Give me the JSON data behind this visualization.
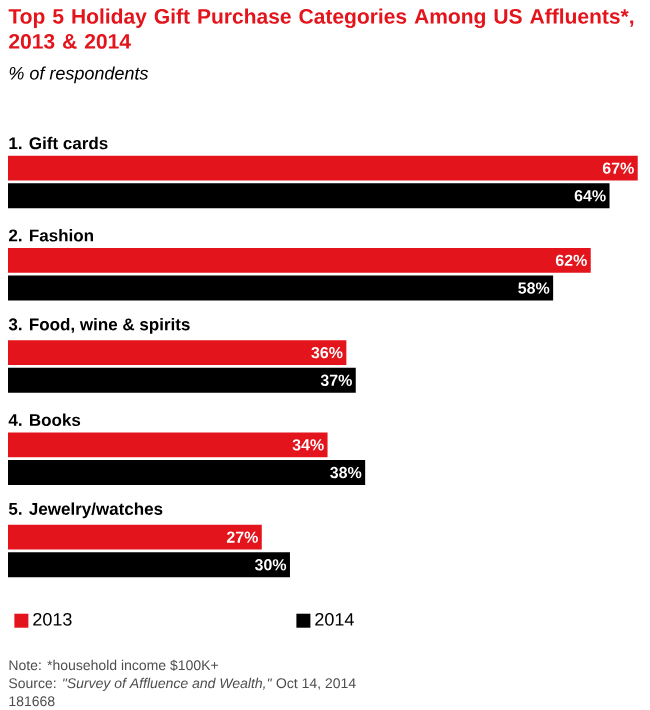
{
  "chart_data": {
    "type": "bar",
    "orientation": "horizontal",
    "title": "Top 5 Holiday Gift Purchase Categories Among US Affluents*, 2013 & 2014",
    "subtitle": "% of respondents",
    "categories": [
      "1. Gift cards",
      "2. Fashion",
      "3. Food, wine & spirits",
      "4. Books",
      "5. Jewelry/watches"
    ],
    "series": [
      {
        "name": "2013",
        "color": "#e3141b",
        "values": [
          67,
          62,
          36,
          34,
          27
        ],
        "value_labels": [
          "67%",
          "62%",
          "36%",
          "34%",
          "27%"
        ]
      },
      {
        "name": "2014",
        "color": "#000000",
        "values": [
          64,
          58,
          37,
          38,
          30
        ],
        "value_labels": [
          "64%",
          "58%",
          "37%",
          "38%",
          "30%"
        ]
      }
    ],
    "legend": "bottom",
    "annotations": [
      "Note: *household income $100K+",
      "Source: *\"Survey of Affluence and Wealth,\"* Oct 14, 2014",
      "181668"
    ]
  }
}
